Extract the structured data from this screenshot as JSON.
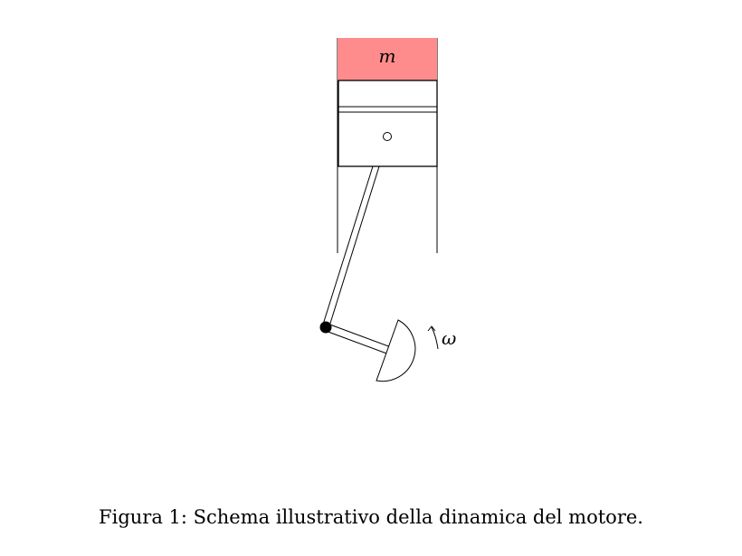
{
  "diagram": {
    "mass_label": "m",
    "omega_label": "ω",
    "colors": {
      "mass_fill": "#ff8c8c",
      "stroke": "#000000"
    }
  },
  "caption": {
    "text": "Figura 1: Schema illustrativo della dinamica del motore."
  }
}
